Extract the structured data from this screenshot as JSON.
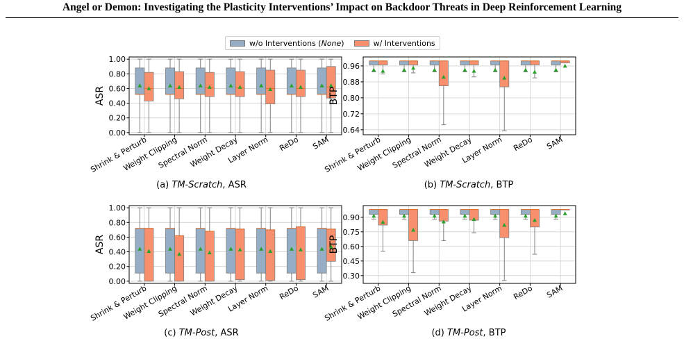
{
  "page": {
    "title": "Angel or Demon: Investigating the Plasticity Interventions’ Impact on Backdoor Threats in Deep Reinforcement Learning"
  },
  "legend": {
    "items": [
      {
        "label_prefix": "w/o Interventions (",
        "label_italic": "None",
        "label_suffix": ")",
        "color": "#95aec5"
      },
      {
        "label_prefix": "w/ Interventions",
        "label_italic": "",
        "label_suffix": "",
        "color": "#f8906d"
      }
    ]
  },
  "colors": {
    "baseline": "#95aec5",
    "intervention": "#f8906d",
    "median": "#e36e2a",
    "mean_marker": "#2ca02c",
    "whisker": "#7f7f7f",
    "grid": "#d0d0d0"
  },
  "chart_data": [
    {
      "type": "box",
      "caption": {
        "prefix": "(a) ",
        "italic": "TM-Scratch",
        "suffix": ", ASR"
      },
      "ylabel": "ASR",
      "ylim": [
        -0.03,
        1.03
      ],
      "yticks": [
        0.0,
        0.2,
        0.4,
        0.6,
        0.8,
        1.0
      ],
      "ytick_labels": [
        "0.00",
        "0.20",
        "0.40",
        "0.60",
        "0.80",
        "1.00"
      ],
      "grid": true,
      "categories": [
        "Shrink & Perturb",
        "Weight Clipping",
        "Spectral Norm",
        "Weight Decay",
        "Layer Norm",
        "ReDo",
        "SAM"
      ],
      "series": [
        {
          "name": "w/o Interventions (None)",
          "boxes": [
            {
              "min": 0.0,
              "q1": 0.52,
              "median": 0.52,
              "q3": 0.88,
              "max": 1.0,
              "mean": 0.64
            },
            {
              "min": 0.0,
              "q1": 0.52,
              "median": 0.52,
              "q3": 0.88,
              "max": 1.0,
              "mean": 0.64
            },
            {
              "min": 0.0,
              "q1": 0.52,
              "median": 0.52,
              "q3": 0.88,
              "max": 1.0,
              "mean": 0.64
            },
            {
              "min": 0.0,
              "q1": 0.52,
              "median": 0.52,
              "q3": 0.88,
              "max": 1.0,
              "mean": 0.64
            },
            {
              "min": 0.0,
              "q1": 0.52,
              "median": 0.52,
              "q3": 0.88,
              "max": 1.0,
              "mean": 0.64
            },
            {
              "min": 0.0,
              "q1": 0.52,
              "median": 0.52,
              "q3": 0.88,
              "max": 1.0,
              "mean": 0.64
            },
            {
              "min": 0.0,
              "q1": 0.52,
              "median": 0.52,
              "q3": 0.88,
              "max": 1.0,
              "mean": 0.64
            }
          ]
        },
        {
          "name": "w/ Interventions",
          "boxes": [
            {
              "min": 0.0,
              "q1": 0.43,
              "median": 0.6,
              "q3": 0.82,
              "max": 1.0,
              "mean": 0.6
            },
            {
              "min": 0.0,
              "q1": 0.46,
              "median": 0.6,
              "q3": 0.83,
              "max": 1.0,
              "mean": 0.62
            },
            {
              "min": 0.0,
              "q1": 0.49,
              "median": 0.61,
              "q3": 0.82,
              "max": 1.0,
              "mean": 0.62
            },
            {
              "min": 0.0,
              "q1": 0.49,
              "median": 0.61,
              "q3": 0.83,
              "max": 1.0,
              "mean": 0.62
            },
            {
              "min": 0.0,
              "q1": 0.39,
              "median": 0.6,
              "q3": 0.85,
              "max": 1.0,
              "mean": 0.59
            },
            {
              "min": 0.0,
              "q1": 0.49,
              "median": 0.6,
              "q3": 0.85,
              "max": 1.0,
              "mean": 0.62
            },
            {
              "min": 0.0,
              "q1": 0.47,
              "median": 0.62,
              "q3": 0.9,
              "max": 1.0,
              "mean": 0.64
            }
          ]
        }
      ]
    },
    {
      "type": "box",
      "caption": {
        "prefix": "(b) ",
        "italic": "TM-Scratch",
        "suffix": ", BTP"
      },
      "ylabel": "BTP",
      "ylim": [
        0.615,
        1.005
      ],
      "yticks": [
        0.64,
        0.72,
        0.8,
        0.88,
        0.96
      ],
      "ytick_labels": [
        "0.64",
        "0.72",
        "0.80",
        "0.88",
        "0.96"
      ],
      "grid": true,
      "categories": [
        "Shrink & Perturb",
        "Weight Clipping",
        "Spectral Norm",
        "Weight Decay",
        "Layer Norm",
        "ReDo",
        "SAM"
      ],
      "series": [
        {
          "name": "w/o Interventions (None)",
          "boxes": [
            {
              "min": 0.93,
              "q1": 0.965,
              "median": 0.985,
              "q3": 0.985,
              "max": 0.985,
              "mean": 0.94
            },
            {
              "min": 0.93,
              "q1": 0.965,
              "median": 0.985,
              "q3": 0.985,
              "max": 0.985,
              "mean": 0.94
            },
            {
              "min": 0.93,
              "q1": 0.965,
              "median": 0.985,
              "q3": 0.985,
              "max": 0.985,
              "mean": 0.94
            },
            {
              "min": 0.93,
              "q1": 0.965,
              "median": 0.985,
              "q3": 0.985,
              "max": 0.985,
              "mean": 0.94
            },
            {
              "min": 0.93,
              "q1": 0.965,
              "median": 0.985,
              "q3": 0.985,
              "max": 0.985,
              "mean": 0.94
            },
            {
              "min": 0.93,
              "q1": 0.965,
              "median": 0.985,
              "q3": 0.985,
              "max": 0.985,
              "mean": 0.94
            },
            {
              "min": 0.93,
              "q1": 0.965,
              "median": 0.985,
              "q3": 0.985,
              "max": 0.985,
              "mean": 0.94
            }
          ]
        },
        {
          "name": "w/ Interventions",
          "boxes": [
            {
              "min": 0.92,
              "q1": 0.965,
              "median": 0.985,
              "q3": 0.985,
              "max": 0.985,
              "mean": 0.935
            },
            {
              "min": 0.925,
              "q1": 0.965,
              "median": 0.985,
              "q3": 0.985,
              "max": 0.985,
              "mean": 0.95
            },
            {
              "min": 0.665,
              "q1": 0.86,
              "median": 0.985,
              "q3": 0.985,
              "max": 0.985,
              "mean": 0.905
            },
            {
              "min": 0.905,
              "q1": 0.965,
              "median": 0.985,
              "q3": 0.985,
              "max": 0.985,
              "mean": 0.935
            },
            {
              "min": 0.635,
              "q1": 0.855,
              "median": 0.985,
              "q3": 0.985,
              "max": 0.985,
              "mean": 0.9
            },
            {
              "min": 0.9,
              "q1": 0.965,
              "median": 0.985,
              "q3": 0.985,
              "max": 0.985,
              "mean": 0.93
            },
            {
              "min": 0.975,
              "q1": 0.975,
              "median": 0.985,
              "q3": 0.985,
              "max": 0.985,
              "mean": 0.96
            }
          ]
        }
      ]
    },
    {
      "type": "box",
      "caption": {
        "prefix": "(c) ",
        "italic": "TM-Post",
        "suffix": ", ASR"
      },
      "ylabel": "ASR",
      "ylim": [
        -0.03,
        1.03
      ],
      "yticks": [
        0.0,
        0.2,
        0.4,
        0.6,
        0.8,
        1.0
      ],
      "ytick_labels": [
        "0.00",
        "0.20",
        "0.40",
        "0.60",
        "0.80",
        "1.00"
      ],
      "grid": true,
      "categories": [
        "Shrink & Perturb",
        "Weight Clipping",
        "Spectral Norm",
        "Weight Decay",
        "Layer Norm",
        "ReDo",
        "SAM"
      ],
      "series": [
        {
          "name": "w/o Interventions (None)",
          "boxes": [
            {
              "min": 0.0,
              "q1": 0.11,
              "median": 0.72,
              "q3": 0.72,
              "max": 1.0,
              "mean": 0.44
            },
            {
              "min": 0.0,
              "q1": 0.11,
              "median": 0.72,
              "q3": 0.72,
              "max": 1.0,
              "mean": 0.44
            },
            {
              "min": 0.0,
              "q1": 0.11,
              "median": 0.72,
              "q3": 0.72,
              "max": 1.0,
              "mean": 0.44
            },
            {
              "min": 0.0,
              "q1": 0.11,
              "median": 0.72,
              "q3": 0.72,
              "max": 1.0,
              "mean": 0.44
            },
            {
              "min": 0.0,
              "q1": 0.11,
              "median": 0.72,
              "q3": 0.72,
              "max": 1.0,
              "mean": 0.44
            },
            {
              "min": 0.0,
              "q1": 0.11,
              "median": 0.72,
              "q3": 0.72,
              "max": 1.0,
              "mean": 0.44
            },
            {
              "min": 0.0,
              "q1": 0.11,
              "median": 0.72,
              "q3": 0.72,
              "max": 1.0,
              "mean": 0.44
            }
          ]
        },
        {
          "name": "w/ Interventions",
          "boxes": [
            {
              "min": 0.0,
              "q1": 0.0,
              "median": 0.72,
              "q3": 0.72,
              "max": 1.0,
              "mean": 0.41
            },
            {
              "min": 0.0,
              "q1": 0.0,
              "median": 0.62,
              "q3": 0.62,
              "max": 1.0,
              "mean": 0.37
            },
            {
              "min": 0.0,
              "q1": 0.0,
              "median": 0.68,
              "q3": 0.68,
              "max": 1.0,
              "mean": 0.39
            },
            {
              "min": 0.0,
              "q1": 0.02,
              "median": 0.71,
              "q3": 0.71,
              "max": 1.0,
              "mean": 0.43
            },
            {
              "min": 0.0,
              "q1": 0.01,
              "median": 0.7,
              "q3": 0.7,
              "max": 1.0,
              "mean": 0.41
            },
            {
              "min": 0.0,
              "q1": 0.02,
              "median": 0.74,
              "q3": 0.74,
              "max": 1.0,
              "mean": 0.43
            },
            {
              "min": 0.0,
              "q1": 0.27,
              "median": 0.71,
              "q3": 0.71,
              "max": 1.0,
              "mean": 0.47
            }
          ]
        }
      ]
    },
    {
      "type": "box",
      "caption": {
        "prefix": "(d) ",
        "italic": "TM-Post",
        "suffix": ", BTP"
      },
      "ylabel": "BTP",
      "ylim": [
        0.22,
        1.02
      ],
      "yticks": [
        0.3,
        0.45,
        0.6,
        0.75,
        0.9
      ],
      "ytick_labels": [
        "0.30",
        "0.45",
        "0.60",
        "0.75",
        "0.90"
      ],
      "grid": true,
      "categories": [
        "Shrink & Perturb",
        "Weight Clipping",
        "Spectral Norm",
        "Weight Decay",
        "Layer Norm",
        "ReDo",
        "SAM"
      ],
      "series": [
        {
          "name": "w/o Interventions (None)",
          "boxes": [
            {
              "min": 0.88,
              "q1": 0.93,
              "median": 0.98,
              "q3": 0.98,
              "max": 0.98,
              "mean": 0.915
            },
            {
              "min": 0.88,
              "q1": 0.93,
              "median": 0.98,
              "q3": 0.98,
              "max": 0.98,
              "mean": 0.915
            },
            {
              "min": 0.88,
              "q1": 0.93,
              "median": 0.98,
              "q3": 0.98,
              "max": 0.98,
              "mean": 0.915
            },
            {
              "min": 0.88,
              "q1": 0.93,
              "median": 0.98,
              "q3": 0.98,
              "max": 0.98,
              "mean": 0.915
            },
            {
              "min": 0.88,
              "q1": 0.93,
              "median": 0.98,
              "q3": 0.98,
              "max": 0.98,
              "mean": 0.915
            },
            {
              "min": 0.88,
              "q1": 0.93,
              "median": 0.98,
              "q3": 0.98,
              "max": 0.98,
              "mean": 0.915
            },
            {
              "min": 0.88,
              "q1": 0.93,
              "median": 0.98,
              "q3": 0.98,
              "max": 0.98,
              "mean": 0.915
            }
          ]
        },
        {
          "name": "w/ Interventions",
          "boxes": [
            {
              "min": 0.55,
              "q1": 0.82,
              "median": 0.98,
              "q3": 0.98,
              "max": 0.98,
              "mean": 0.85
            },
            {
              "min": 0.33,
              "q1": 0.66,
              "median": 0.98,
              "q3": 0.98,
              "max": 0.98,
              "mean": 0.77
            },
            {
              "min": 0.66,
              "q1": 0.86,
              "median": 0.98,
              "q3": 0.98,
              "max": 0.98,
              "mean": 0.855
            },
            {
              "min": 0.74,
              "q1": 0.87,
              "median": 0.98,
              "q3": 0.98,
              "max": 0.98,
              "mean": 0.88
            },
            {
              "min": 0.25,
              "q1": 0.69,
              "median": 0.98,
              "q3": 0.98,
              "max": 0.98,
              "mean": 0.82
            },
            {
              "min": 0.52,
              "q1": 0.8,
              "median": 0.98,
              "q3": 0.98,
              "max": 0.98,
              "mean": 0.87
            },
            {
              "min": 0.98,
              "q1": 0.98,
              "median": 0.98,
              "q3": 0.98,
              "max": 0.98,
              "mean": 0.94
            }
          ]
        }
      ]
    }
  ]
}
